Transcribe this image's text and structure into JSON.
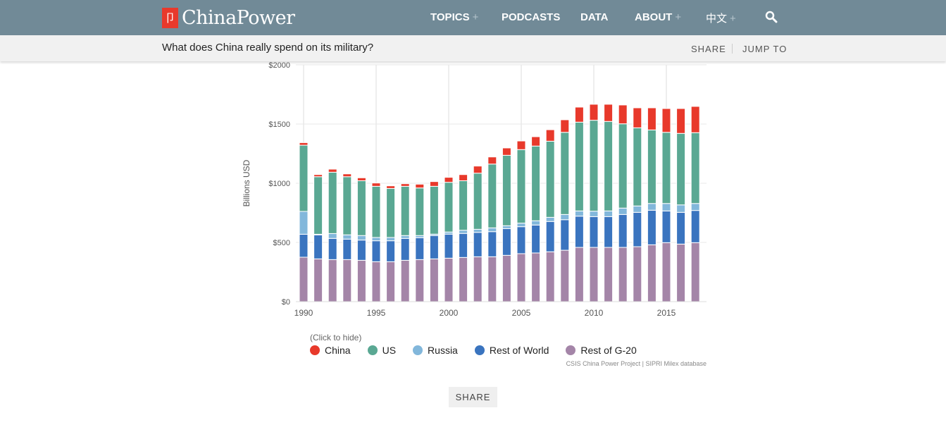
{
  "header": {
    "logo_mark": "卩",
    "brand": "ChinaPower",
    "nav": [
      {
        "label": "TOPICS",
        "plus": "+"
      },
      {
        "label": "PODCASTS"
      },
      {
        "label": "DATA"
      },
      {
        "label": "ABOUT",
        "plus": "+"
      },
      {
        "label": "中文",
        "plus": "+"
      }
    ],
    "search_icon": "search-icon"
  },
  "subheader": {
    "title": "What does China really spend on its military?",
    "share": "SHARE",
    "jump_to": "JUMP TO"
  },
  "chart_data": {
    "type": "bar",
    "stacked": true,
    "ylabel": "Billions USD",
    "ylim": [
      0,
      2000
    ],
    "yticks": [
      "$0",
      "$500",
      "$1000",
      "$1500",
      "$2000"
    ],
    "ytick_values": [
      0,
      500,
      1000,
      1500,
      2000
    ],
    "xticks": [
      "1990",
      "1995",
      "2000",
      "2005",
      "2010",
      "2015"
    ],
    "grid": true,
    "legend_placement": "bottom",
    "legend_hint": "(Click to hide)",
    "categories": [
      1990,
      1991,
      1992,
      1993,
      1994,
      1995,
      1996,
      1997,
      1998,
      1999,
      2000,
      2001,
      2002,
      2003,
      2004,
      2005,
      2006,
      2007,
      2008,
      2009,
      2010,
      2011,
      2012,
      2013,
      2014,
      2015,
      2016,
      2017
    ],
    "series": [
      {
        "name": "Rest of G-20",
        "color": "#a485a8",
        "values": [
          375,
          361,
          355,
          355,
          349,
          337,
          337,
          349,
          355,
          361,
          367,
          373,
          379,
          379,
          391,
          405,
          411,
          421,
          434,
          458,
          458,
          458,
          458,
          464,
          480,
          498,
          486,
          498
        ]
      },
      {
        "name": "Rest of World",
        "color": "#3a74bf",
        "values": [
          194,
          203,
          179,
          173,
          171,
          177,
          177,
          185,
          185,
          197,
          203,
          203,
          206,
          212,
          226,
          228,
          236,
          256,
          258,
          264,
          260,
          260,
          278,
          290,
          292,
          268,
          268,
          272
        ]
      },
      {
        "name": "Russia",
        "color": "#82b7db",
        "values": [
          193,
          5,
          41,
          36,
          38,
          28,
          28,
          24,
          18,
          12,
          18,
          27,
          26,
          32,
          24,
          30,
          36,
          35,
          44,
          44,
          46,
          48,
          54,
          54,
          57,
          63,
          63,
          59
        ]
      },
      {
        "name": "US",
        "color": "#5aa893",
        "values": [
          559,
          486,
          518,
          491,
          463,
          432,
          414,
          416,
          402,
          404,
          420,
          418,
          474,
          539,
          595,
          621,
          631,
          643,
          694,
          750,
          768,
          756,
          712,
          660,
          621,
          601,
          604,
          598
        ]
      },
      {
        "name": "China",
        "color": "#e8392b",
        "values": [
          22,
          18,
          26,
          24,
          25,
          28,
          22,
          22,
          32,
          40,
          42,
          52,
          60,
          60,
          62,
          73,
          79,
          97,
          106,
          127,
          135,
          145,
          159,
          169,
          187,
          201,
          210,
          222
        ]
      }
    ],
    "legend_order": [
      "China",
      "US",
      "Russia",
      "Rest of World",
      "Rest of G-20"
    ],
    "source": "CSIS China Power Project | SIPRI Milex database"
  },
  "footer": {
    "share": "SHARE"
  }
}
